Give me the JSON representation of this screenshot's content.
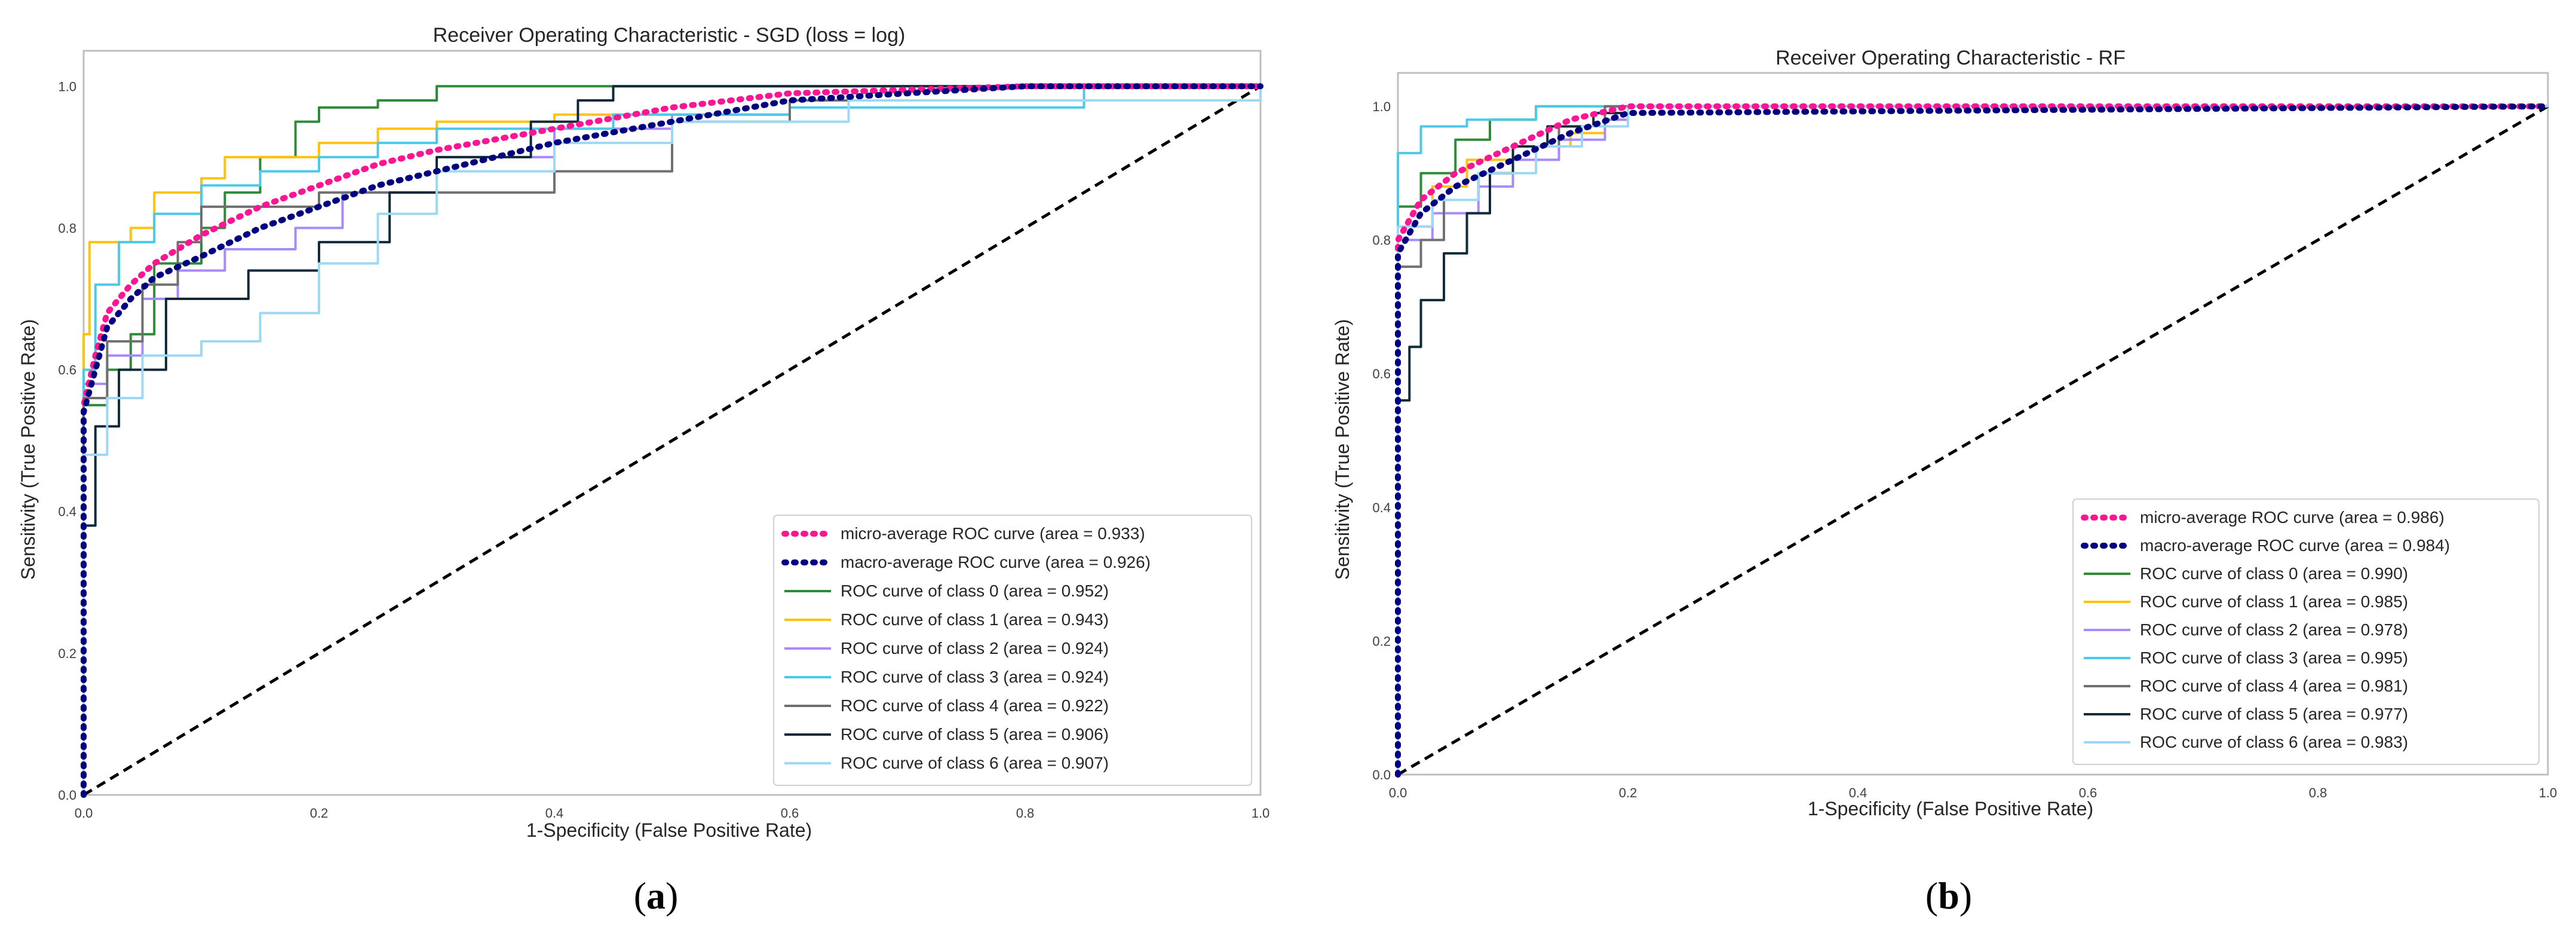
{
  "captions": {
    "a_letter": "a",
    "b_letter": "b"
  },
  "style": {
    "micro_color": "#ff1493",
    "macro_color": "#000080",
    "class_colors": [
      "#2e8b3a",
      "#ffc20e",
      "#a78bfa",
      "#4cc9e8",
      "#707070",
      "#102a3a",
      "#9ed8f5"
    ],
    "diagonal_color": "#000000"
  },
  "chart_data": [
    {
      "type": "line",
      "title": "Receiver Operating Characteristic - SGD (loss = log)",
      "xlabel": "1-Specificity (False Positive Rate)",
      "ylabel": "Sensitivity (True Positive Rate)",
      "xlim": [
        0,
        1
      ],
      "ylim": [
        0,
        1.05
      ],
      "xticks": [
        "0.0",
        "0.2",
        "0.4",
        "0.6",
        "0.8",
        "1.0"
      ],
      "yticks": [
        "0.0",
        "0.2",
        "0.4",
        "0.6",
        "0.8",
        "1.0"
      ],
      "legend_position": "lower-right",
      "series": [
        {
          "name": "micro-average ROC curve (area = 0.933)",
          "style": "dotted",
          "x": [
            0,
            0,
            0.01,
            0.02,
            0.04,
            0.06,
            0.1,
            0.15,
            0.2,
            0.25,
            0.3,
            0.4,
            0.5,
            0.6,
            0.8,
            1.0
          ],
          "y": [
            0,
            0.55,
            0.62,
            0.68,
            0.72,
            0.75,
            0.79,
            0.83,
            0.86,
            0.89,
            0.91,
            0.94,
            0.97,
            0.99,
            1.0,
            1.0
          ]
        },
        {
          "name": "macro-average ROC curve (area = 0.926)",
          "style": "dotted",
          "x": [
            0,
            0,
            0.01,
            0.02,
            0.04,
            0.06,
            0.1,
            0.15,
            0.2,
            0.25,
            0.3,
            0.4,
            0.5,
            0.6,
            0.8,
            1.0
          ],
          "y": [
            0,
            0.54,
            0.6,
            0.66,
            0.7,
            0.73,
            0.76,
            0.8,
            0.83,
            0.86,
            0.88,
            0.92,
            0.95,
            0.98,
            1.0,
            1.0
          ]
        },
        {
          "name": "ROC curve of class 0 (area = 0.952)",
          "style": "solid",
          "x": [
            0,
            0,
            0.02,
            0.04,
            0.06,
            0.1,
            0.12,
            0.15,
            0.18,
            0.2,
            0.25,
            0.3,
            0.4,
            0.45,
            0.6,
            1.0
          ],
          "y": [
            0,
            0.55,
            0.6,
            0.65,
            0.75,
            0.8,
            0.85,
            0.9,
            0.95,
            0.97,
            0.98,
            1.0,
            1.0,
            1.0,
            1.0,
            1.0
          ]
        },
        {
          "name": "ROC curve of class 1 (area = 0.943)",
          "style": "solid",
          "x": [
            0,
            0,
            0.005,
            0.04,
            0.06,
            0.1,
            0.12,
            0.2,
            0.25,
            0.3,
            0.4,
            0.6,
            0.85,
            0.85,
            1.0
          ],
          "y": [
            0,
            0.65,
            0.78,
            0.8,
            0.85,
            0.87,
            0.9,
            0.92,
            0.94,
            0.95,
            0.96,
            0.98,
            0.98,
            1.0,
            1.0
          ]
        },
        {
          "name": "ROC curve of class 2 (area = 0.924)",
          "style": "solid",
          "x": [
            0,
            0,
            0.02,
            0.05,
            0.08,
            0.12,
            0.18,
            0.22,
            0.3,
            0.4,
            0.5,
            0.6,
            1.0
          ],
          "y": [
            0,
            0.58,
            0.62,
            0.7,
            0.74,
            0.77,
            0.8,
            0.85,
            0.9,
            0.94,
            0.96,
            0.98,
            1.0
          ]
        },
        {
          "name": "ROC curve of class 3 (area = 0.924)",
          "style": "solid",
          "x": [
            0,
            0,
            0.01,
            0.03,
            0.06,
            0.1,
            0.15,
            0.2,
            0.25,
            0.3,
            0.45,
            0.6,
            0.85,
            0.85,
            1.0
          ],
          "y": [
            0,
            0.6,
            0.72,
            0.78,
            0.82,
            0.86,
            0.88,
            0.9,
            0.92,
            0.94,
            0.96,
            0.97,
            0.97,
            1.0,
            1.0
          ]
        },
        {
          "name": "ROC curve of class 4 (area = 0.922)",
          "style": "solid",
          "x": [
            0,
            0,
            0.02,
            0.05,
            0.08,
            0.1,
            0.2,
            0.3,
            0.35,
            0.4,
            0.5,
            0.6,
            1.0
          ],
          "y": [
            0,
            0.56,
            0.64,
            0.72,
            0.78,
            0.83,
            0.85,
            0.85,
            0.85,
            0.88,
            0.95,
            0.98,
            1.0
          ]
        },
        {
          "name": "ROC curve of class 5 (area = 0.906)",
          "style": "solid",
          "x": [
            0,
            0,
            0.01,
            0.03,
            0.07,
            0.14,
            0.2,
            0.26,
            0.3,
            0.38,
            0.42,
            0.45,
            0.5,
            1.0
          ],
          "y": [
            0,
            0.38,
            0.52,
            0.6,
            0.7,
            0.74,
            0.78,
            0.85,
            0.9,
            0.95,
            0.98,
            1.0,
            1.0,
            1.0
          ]
        },
        {
          "name": "ROC curve of class 6 (area = 0.907)",
          "style": "solid",
          "x": [
            0,
            0,
            0.02,
            0.05,
            0.1,
            0.15,
            0.2,
            0.25,
            0.3,
            0.4,
            0.5,
            0.65,
            1.0
          ],
          "y": [
            0,
            0.48,
            0.56,
            0.62,
            0.64,
            0.68,
            0.75,
            0.82,
            0.88,
            0.92,
            0.95,
            0.98,
            1.0
          ]
        }
      ]
    },
    {
      "type": "line",
      "title": "Receiver Operating Characteristic - RF",
      "xlabel": "1-Specificity (False Positive Rate)",
      "ylabel": "Sensitivity (True Positive Rate)",
      "xlim": [
        0,
        1
      ],
      "ylim": [
        0,
        1.05
      ],
      "xticks": [
        "0.0",
        "0.2",
        "0.4",
        "0.6",
        "0.8",
        "1.0"
      ],
      "yticks": [
        "0.0",
        "0.2",
        "0.4",
        "0.6",
        "0.8",
        "1.0"
      ],
      "legend_position": "lower-right",
      "series": [
        {
          "name": "micro-average ROC curve (area = 0.986)",
          "style": "dotted",
          "x": [
            0,
            0,
            0.02,
            0.05,
            0.1,
            0.15,
            0.2,
            1.0
          ],
          "y": [
            0,
            0.8,
            0.86,
            0.9,
            0.94,
            0.98,
            1.0,
            1.0
          ]
        },
        {
          "name": "macro-average ROC curve (area = 0.984)",
          "style": "dotted",
          "x": [
            0,
            0,
            0.02,
            0.05,
            0.1,
            0.15,
            0.2,
            1.0
          ],
          "y": [
            0,
            0.78,
            0.84,
            0.88,
            0.92,
            0.96,
            0.99,
            1.0
          ]
        },
        {
          "name": "ROC curve of class 0 (area = 0.990)",
          "style": "solid",
          "x": [
            0,
            0,
            0.02,
            0.05,
            0.08,
            0.12,
            1.0
          ],
          "y": [
            0,
            0.85,
            0.9,
            0.95,
            0.98,
            1.0,
            1.0
          ]
        },
        {
          "name": "ROC curve of class 1 (area = 0.985)",
          "style": "solid",
          "x": [
            0,
            0,
            0.03,
            0.06,
            0.1,
            0.15,
            0.18,
            0.2,
            1.0
          ],
          "y": [
            0,
            0.82,
            0.88,
            0.92,
            0.94,
            0.96,
            0.98,
            1.0,
            1.0
          ]
        },
        {
          "name": "ROC curve of class 2 (area = 0.978)",
          "style": "solid",
          "x": [
            0,
            0,
            0.03,
            0.07,
            0.1,
            0.14,
            0.18,
            0.2,
            1.0
          ],
          "y": [
            0,
            0.8,
            0.84,
            0.88,
            0.92,
            0.95,
            0.98,
            1.0,
            1.0
          ]
        },
        {
          "name": "ROC curve of class 3 (area = 0.995)",
          "style": "solid",
          "x": [
            0,
            0,
            0.02,
            0.06,
            0.12,
            1.0
          ],
          "y": [
            0,
            0.93,
            0.97,
            0.98,
            1.0,
            1.0
          ]
        },
        {
          "name": "ROC curve of class 4 (area = 0.981)",
          "style": "solid",
          "x": [
            0,
            0,
            0.02,
            0.04,
            0.07,
            0.1,
            0.14,
            0.18,
            1.0
          ],
          "y": [
            0,
            0.76,
            0.8,
            0.86,
            0.9,
            0.94,
            0.97,
            1.0,
            1.0
          ]
        },
        {
          "name": "ROC curve of class 5 (area = 0.977)",
          "style": "solid",
          "x": [
            0,
            0,
            0.01,
            0.02,
            0.04,
            0.06,
            0.08,
            0.1,
            0.13,
            0.17,
            0.2,
            1.0
          ],
          "y": [
            0,
            0.56,
            0.64,
            0.71,
            0.78,
            0.84,
            0.9,
            0.94,
            0.97,
            0.99,
            1.0,
            1.0
          ]
        },
        {
          "name": "ROC curve of class 6 (area = 0.983)",
          "style": "solid",
          "x": [
            0,
            0,
            0.03,
            0.07,
            0.12,
            0.16,
            0.2,
            1.0
          ],
          "y": [
            0,
            0.82,
            0.86,
            0.9,
            0.94,
            0.97,
            1.0,
            1.0
          ]
        }
      ]
    }
  ]
}
